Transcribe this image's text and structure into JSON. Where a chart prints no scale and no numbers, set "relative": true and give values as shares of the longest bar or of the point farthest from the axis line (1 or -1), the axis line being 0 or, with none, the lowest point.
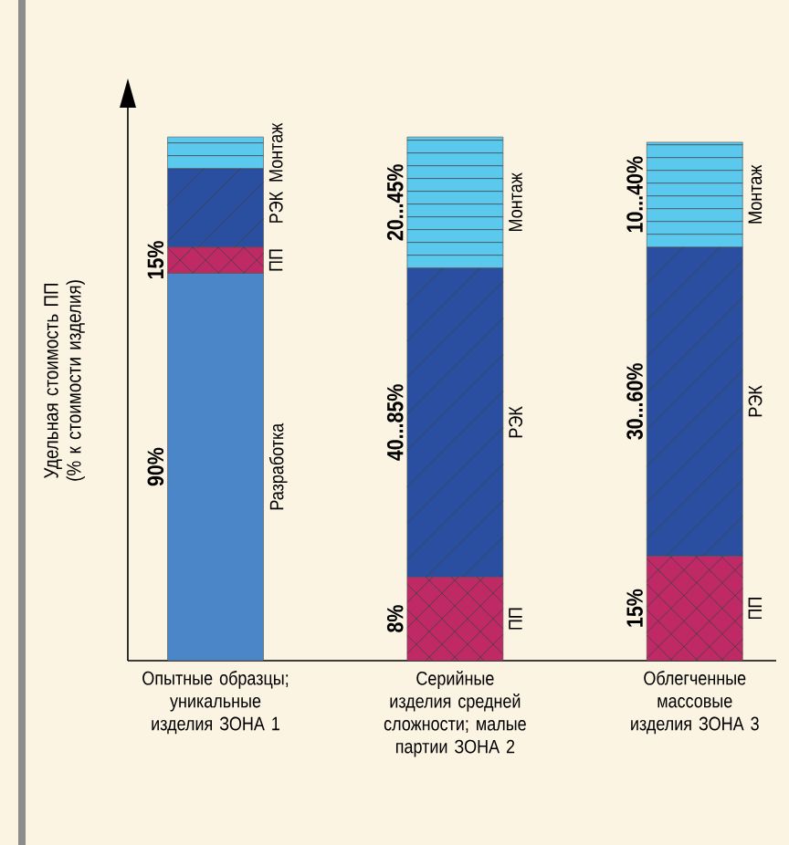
{
  "chart_data": {
    "type": "bar",
    "stacked": true,
    "relative": true,
    "ylabel": "Удельная стоимость ПП (% к стоимости изделия)",
    "categories": [
      "Опытные образцы; уникальные изделия ЗОНА 1",
      "Серийные изделия средней сложности; малые партии ЗОНА 2",
      "Облегченные массовые изделия ЗОНА 3"
    ],
    "series": [
      {
        "name": "Разработка",
        "color": "#4a86c8",
        "values": [
          0.74,
          null,
          null
        ]
      },
      {
        "name": "ПП",
        "color": "#bf2a66",
        "values": [
          0.05,
          0.16,
          0.2
        ]
      },
      {
        "name": "РЭК",
        "color": "#2a4fa0",
        "values": [
          0.15,
          0.59,
          0.59
        ]
      },
      {
        "name": "Монтаж",
        "color": "#5bc8ee",
        "values": [
          0.06,
          0.25,
          0.2
        ]
      }
    ],
    "annotations": [
      "90%",
      "15%",
      "8%",
      "40...85%",
      "20...45%",
      "15%",
      "30...60%",
      "10...40%"
    ]
  }
}
